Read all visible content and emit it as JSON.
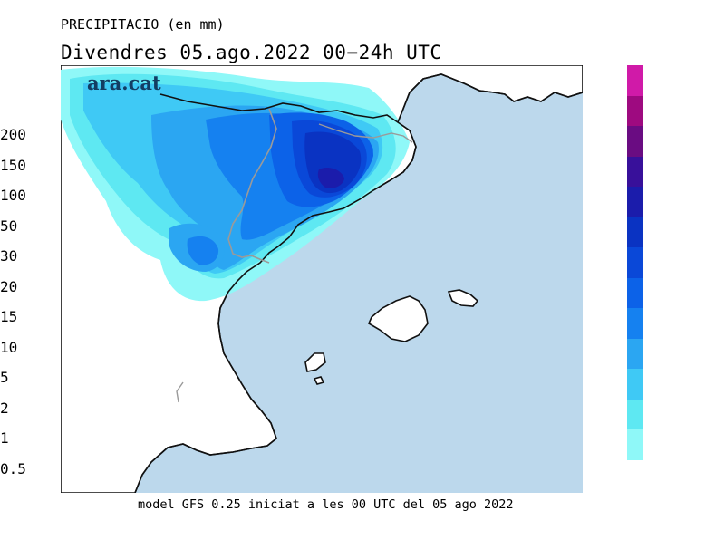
{
  "header": {
    "variable": "PRECIPITACIO (en mm)",
    "valid_date": "Divendres  05.ago.2022 00−24h UTC"
  },
  "brand": {
    "logo_text": "ara.cat"
  },
  "footer": {
    "model_info": "model GFS 0.25 iniciat a les 00 UTC del 05 ago 2022"
  },
  "legend": {
    "unit": "mm",
    "bins": [
      {
        "label": "0.5",
        "color": "#8ff8f8"
      },
      {
        "label": "1",
        "color": "#5ee8f2"
      },
      {
        "label": "2",
        "color": "#3fc9f5"
      },
      {
        "label": "5",
        "color": "#2ba6f2"
      },
      {
        "label": "10",
        "color": "#1581f0"
      },
      {
        "label": "15",
        "color": "#0c62e8"
      },
      {
        "label": "20",
        "color": "#0a48d8"
      },
      {
        "label": "30",
        "color": "#0a33c2"
      },
      {
        "label": "50",
        "color": "#1b1cab"
      },
      {
        "label": "100",
        "color": "#38109a"
      },
      {
        "label": "150",
        "color": "#6a0c82"
      },
      {
        "label": "200",
        "color": "#9e0a80"
      },
      {
        "label": "",
        "color": "#d01aa8"
      }
    ]
  },
  "map": {
    "colors": {
      "sea": "#bcd8ec",
      "land": "#ffffff",
      "coast": "#111111",
      "border": "#a0a0a0"
    },
    "precip_areas": [
      {
        "amount_mm": 0.5,
        "region": "northeast Iberia"
      },
      {
        "amount_mm": 2,
        "region": "Pyrenees / Lleida"
      },
      {
        "amount_mm": 10,
        "region": "central Catalonia"
      },
      {
        "amount_mm": 30,
        "region": "central Catalonia"
      },
      {
        "amount_mm": 50,
        "region": "central Catalonia"
      }
    ]
  }
}
